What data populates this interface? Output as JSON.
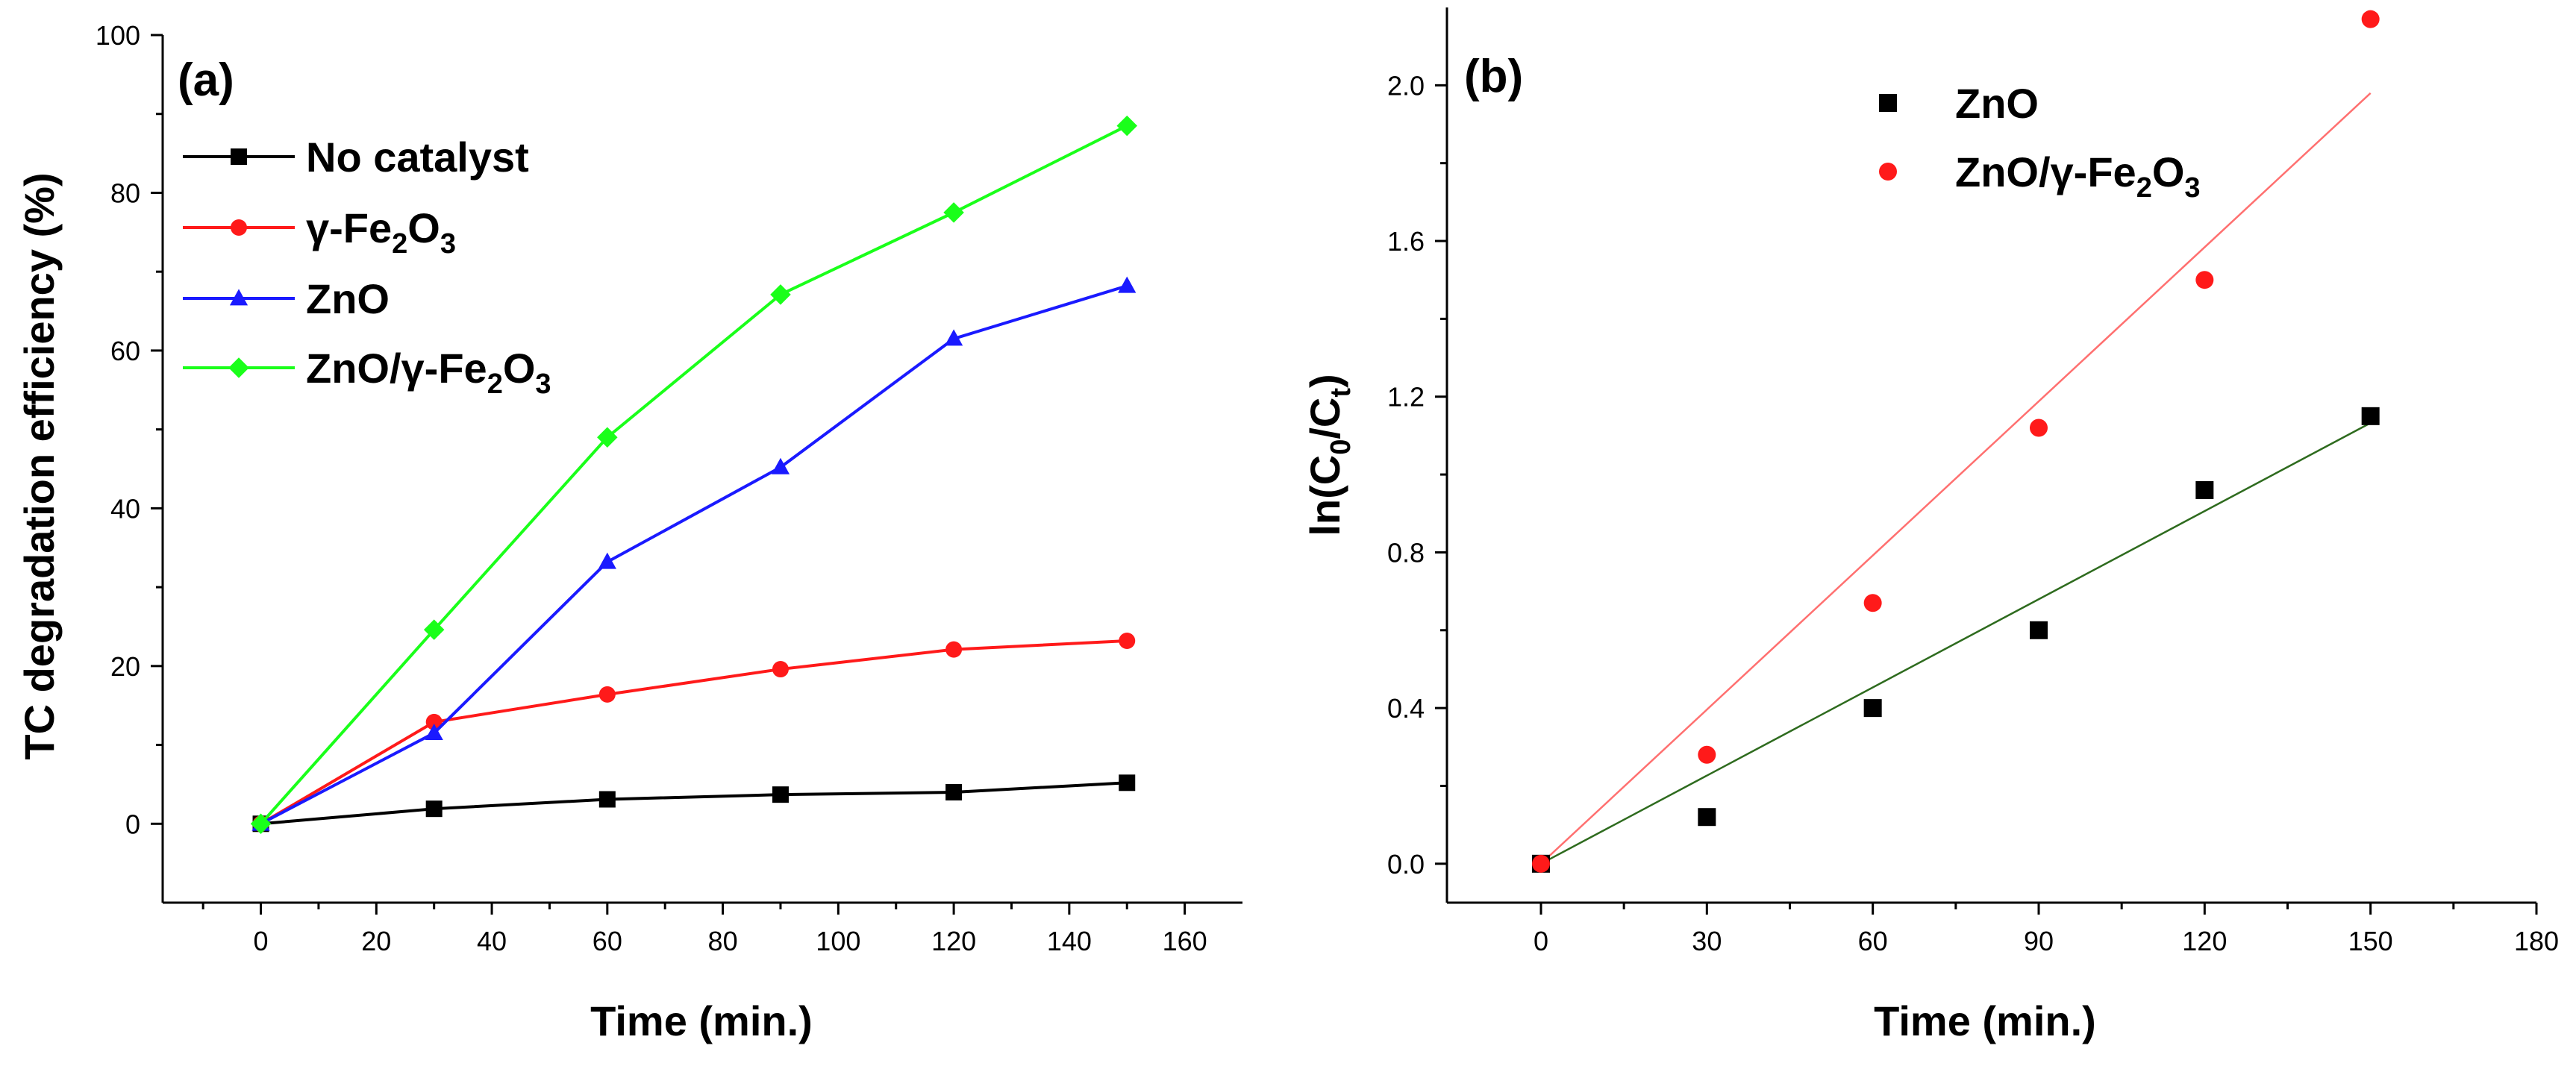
{
  "chart_data": [
    {
      "type": "line",
      "panel_label": "(a)",
      "xlabel": "Time (min.)",
      "ylabel": "TC degradation efficiency (%)",
      "xlim": [
        -17,
        170
      ],
      "ylim": [
        -10,
        100
      ],
      "xticks": [
        0,
        20,
        40,
        60,
        80,
        100,
        120,
        140,
        160
      ],
      "yticks": [
        0,
        20,
        40,
        60,
        80,
        100
      ],
      "x": [
        0,
        30,
        60,
        90,
        120,
        150
      ],
      "series": [
        {
          "name": "No catalyst",
          "color": "#000000",
          "marker": "square",
          "values": [
            0,
            1.9,
            3.1,
            3.7,
            4.0,
            5.2
          ],
          "legend_text": [
            "No catalyst"
          ]
        },
        {
          "name": "γ-Fe2O3",
          "color": "#ff1a1a",
          "marker": "circle",
          "values": [
            0,
            12.9,
            16.4,
            19.6,
            22.1,
            23.2
          ],
          "legend_text": [
            "γ-Fe",
            "2",
            "O",
            "3"
          ]
        },
        {
          "name": "ZnO",
          "color": "#1a1aff",
          "marker": "triangle",
          "values": [
            0,
            11.5,
            33.2,
            45.2,
            61.5,
            68.2
          ],
          "legend_text": [
            "ZnO"
          ]
        },
        {
          "name": "ZnO/γ-Fe2O3",
          "color": "#1aff1a",
          "marker": "diamond",
          "values": [
            0,
            24.6,
            49.0,
            67.1,
            77.5,
            88.5
          ],
          "legend_text": [
            "ZnO/γ-Fe",
            "2",
            "O",
            "3"
          ]
        }
      ],
      "legend_position": "top-left"
    },
    {
      "type": "scatter",
      "panel_label": "(b)",
      "xlabel": "Time (min.)",
      "ylabel": [
        "ln(C",
        "0",
        "/C",
        "t",
        ")"
      ],
      "xlim": [
        -17,
        180
      ],
      "ylim": [
        -0.1,
        2.2
      ],
      "xticks": [
        0,
        30,
        60,
        90,
        120,
        150,
        180
      ],
      "yticks": [
        0.0,
        0.4,
        0.8,
        1.2,
        1.6,
        2.0
      ],
      "ytick_labels": [
        "0.0",
        "0.4",
        "0.8",
        "1.2",
        "1.6",
        "2.0"
      ],
      "x": [
        0,
        30,
        60,
        90,
        120,
        150
      ],
      "series": [
        {
          "name": "ZnO",
          "color": "#000000",
          "marker": "square",
          "values": [
            0,
            0.12,
            0.4,
            0.6,
            0.96,
            1.15
          ],
          "fit_slope": 0.00755,
          "fit_color": "#2e6b1e",
          "legend_text": [
            "ZnO"
          ]
        },
        {
          "name": "ZnO/γ-Fe2O3",
          "color": "#ff1a1a",
          "marker": "circle",
          "values": [
            0,
            0.28,
            0.67,
            1.12,
            1.5,
            2.17
          ],
          "fit_slope": 0.0132,
          "fit_color": "#ff7070",
          "legend_text": [
            "ZnO/γ-Fe",
            "2",
            "O",
            "3"
          ]
        }
      ],
      "legend_position": "top-left"
    }
  ]
}
